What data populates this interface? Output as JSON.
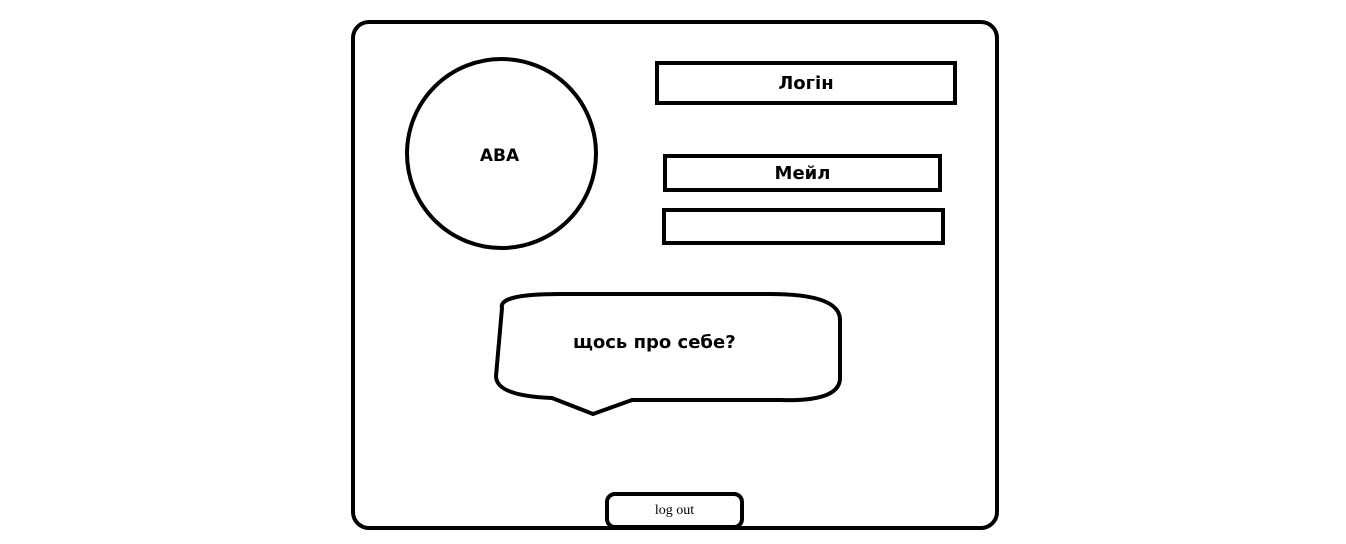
{
  "profile": {
    "avatar_label": "АВА",
    "login_label": "Логін",
    "email_label": "Мейл",
    "extra_field_value": "",
    "about_prompt": "щось про себе?",
    "logout_label": "log out"
  }
}
